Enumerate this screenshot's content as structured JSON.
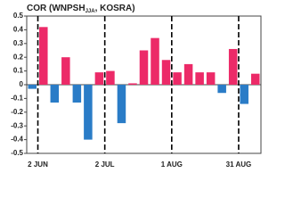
{
  "chart_data": {
    "type": "bar",
    "title": "COR (WNPSH",
    "title_subscript": "JJA",
    "title_end": ", KOSRA)",
    "x": [
      0,
      1,
      2,
      3,
      4,
      5,
      6,
      7,
      8,
      9,
      10,
      11,
      12,
      13,
      14,
      15,
      16,
      17,
      18,
      19,
      20
    ],
    "values": [
      -0.03,
      0.42,
      -0.13,
      0.2,
      -0.13,
      -0.4,
      0.09,
      0.1,
      -0.28,
      0.01,
      0.25,
      0.34,
      0.18,
      0.09,
      0.15,
      0.09,
      0.09,
      -0.06,
      0.26,
      -0.14,
      0.08
    ],
    "color_positive": "#ec2a68",
    "color_negative": "#2a7cc7",
    "xlim": [
      -0.5,
      20.5
    ],
    "xticks": [
      {
        "value": 0.5,
        "label": "2 JUN"
      },
      {
        "value": 6.5,
        "label": "2 JUL"
      },
      {
        "value": 12.5,
        "label": "1 AUG"
      },
      {
        "value": 18.5,
        "label": "31 AUG"
      }
    ],
    "ylim": [
      -0.5,
      0.5
    ],
    "yticks": [
      0.5,
      0.4,
      0.3,
      0.2,
      0.1,
      0,
      -0.1,
      -0.2,
      -0.3,
      -0.4,
      -0.5
    ]
  }
}
